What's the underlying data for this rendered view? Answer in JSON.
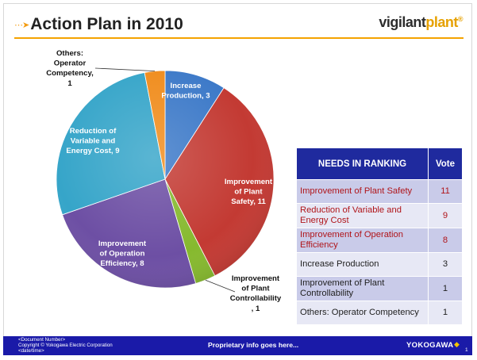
{
  "header": {
    "title": "Action Plan in 2010",
    "title_icon": "arrow-bullet-icon",
    "logo_part1": "vigilant",
    "logo_part2": "plant",
    "logo_mark": "®"
  },
  "chart_data": {
    "type": "pie",
    "title": "",
    "slices": [
      {
        "label": "Increase Production, 3",
        "name": "Increase Production",
        "value": 3,
        "color": "#3c79c8"
      },
      {
        "label": "Improvement of Plant Safety, 11",
        "name": "Improvement of Plant Safety",
        "value": 11,
        "color": "#c33a33"
      },
      {
        "label": "Improvement of Plant Controllability , 1",
        "name": "Improvement of Plant Controllability",
        "value": 1,
        "color": "#86b92e"
      },
      {
        "label": "Improvement of Operation Efficiency, 8",
        "name": "Improvement of Operation Efficiency",
        "value": 8,
        "color": "#6d4fa4"
      },
      {
        "label": "Reduction of Variable and Energy Cost, 9",
        "name": "Reduction of Variable and Energy Cost",
        "value": 9,
        "color": "#36a5c9"
      },
      {
        "label": "Others: Operator Competency, 1",
        "name": "Others: Operator Competency",
        "value": 1,
        "color": "#f08c1c"
      }
    ],
    "label_lines": {
      "increase": [
        "Increase",
        "Production, 3"
      ],
      "safety": [
        "Improvement",
        "of Plant",
        "Safety, 11"
      ],
      "controllability": [
        "Improvement",
        "of Plant",
        "Controllability",
        ", 1"
      ],
      "efficiency": [
        "Improvement",
        "of Operation",
        "Efficiency, 8"
      ],
      "reduction": [
        "Reduction of",
        "Variable and",
        "Energy Cost, 9"
      ],
      "others": [
        "Others:",
        "Operator",
        "Competency,",
        "1"
      ]
    }
  },
  "table": {
    "headers": [
      "NEEDS IN RANKING",
      "Vote"
    ],
    "rows": [
      {
        "need": "Improvement of Plant Safety",
        "vote": "11"
      },
      {
        "need": "Reduction of Variable and Energy Cost",
        "vote": "9"
      },
      {
        "need": "Improvement of Operation Efficiency",
        "vote": "8"
      },
      {
        "need": "Increase Production",
        "vote": "3"
      },
      {
        "need": "Improvement of Plant Controllability",
        "vote": "1"
      },
      {
        "need": "Others: Operator Competency",
        "vote": "1"
      }
    ]
  },
  "footer": {
    "doc_number": "<Document  Number>",
    "copyright": "Copyright © Yokogawa Electric Corporation",
    "date": "<date/time>",
    "center": "Proprietary info goes here...",
    "brand": "YOKOGAWA",
    "brand_icon": "diamond-icon",
    "page": "1"
  }
}
